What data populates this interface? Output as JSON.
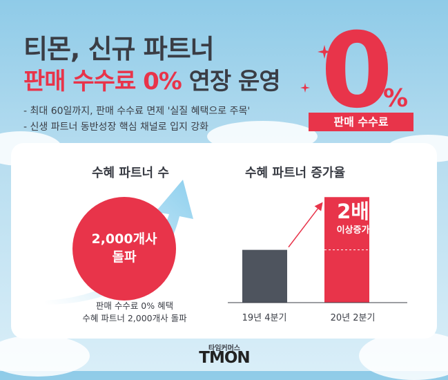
{
  "headline": {
    "line1": "티몬, 신규 파트너",
    "line2_red": "판매 수수료 0%",
    "line2_dark": " 연장 운영"
  },
  "bullets": [
    "- 최대 60일까지, 판매 수수료 면제 '실질 혜택으로 주목'",
    "- 신생 파트너 동반성장 핵심 채널로 입지 강화"
  ],
  "badge": {
    "zero": "0",
    "percent": "%",
    "label": "판매 수수료"
  },
  "left_section": {
    "subtitle": "수혜 파트너 수",
    "circle_line1": "2,000개사",
    "circle_line2": "돌파",
    "caption_line1": "판매 수수료 0% 혜택",
    "caption_line2": "수혜 파트너 2,000개사 돌파"
  },
  "colors": {
    "red": "#e8344a",
    "dark": "#3a3d45",
    "bar_dark": "#4e545e",
    "arrow_blue": "#8fd0ee"
  },
  "chart_data": {
    "type": "bar",
    "title": "수혜 파트너 증가율",
    "categories": [
      "19년 4분기",
      "20년 2분기"
    ],
    "values": [
      1,
      2
    ],
    "ylim": [
      0,
      2.2
    ],
    "annotation_main": "2배",
    "annotation_sub": "이상증가"
  },
  "brand": {
    "small": "타임커머스",
    "logo": "TMON"
  }
}
